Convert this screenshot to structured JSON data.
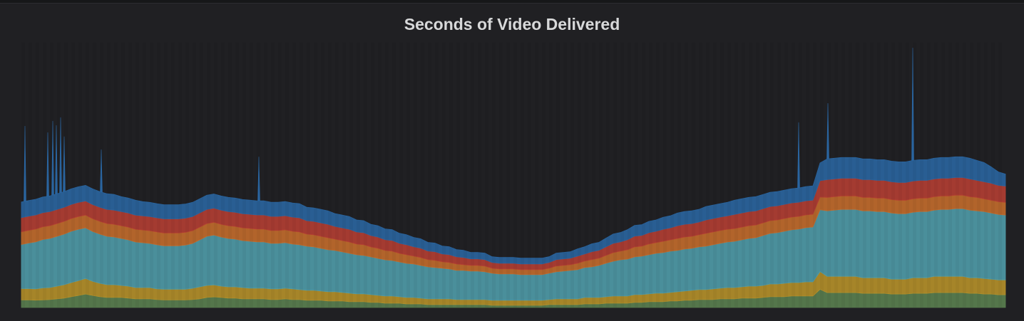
{
  "panel": {
    "title": "Seconds of Video Delivered"
  },
  "chart_data": {
    "type": "area",
    "stacked": true,
    "title": "Seconds of Video Delivered",
    "xlabel": "",
    "ylabel": "",
    "axes_visible": false,
    "grid": false,
    "legend": "none",
    "ylim": [
      0,
      100
    ],
    "x": [
      0,
      1,
      2,
      3,
      4,
      5,
      6,
      7,
      8,
      9,
      10,
      11,
      12,
      13,
      14,
      15,
      16,
      17,
      18,
      19,
      20,
      21,
      22,
      23,
      24,
      25,
      26,
      27,
      28,
      29,
      30,
      31,
      32,
      33,
      34,
      35,
      36,
      37,
      38,
      39,
      40,
      41,
      42,
      43,
      44,
      45,
      46,
      47,
      48,
      49,
      50,
      51,
      52,
      53,
      54,
      55,
      56,
      57,
      58,
      59,
      60,
      61,
      62,
      63,
      64,
      65,
      66,
      67,
      68,
      69,
      70,
      71,
      72,
      73,
      74,
      75,
      76,
      77,
      78,
      79,
      80,
      81,
      82,
      83,
      84,
      85,
      86,
      87,
      88,
      89,
      90,
      91,
      92,
      93,
      94,
      95,
      96,
      97,
      98,
      99,
      100,
      101,
      102,
      103,
      104,
      105,
      106,
      107,
      108,
      109,
      110,
      111,
      112,
      113,
      114,
      115,
      116,
      117,
      118,
      119,
      120,
      121,
      122,
      123,
      124,
      125,
      126,
      127,
      128,
      129,
      130,
      131,
      132,
      133,
      134,
      135,
      136,
      137,
      138
    ],
    "series": [
      {
        "color": "#5a7f50",
        "values": [
          4.2,
          4.2,
          4.1,
          4.2,
          4.4,
          4.8,
          5.2,
          6.0,
          6.7,
          7.5,
          6.7,
          6.0,
          5.6,
          5.6,
          5.6,
          5.2,
          4.8,
          4.8,
          4.8,
          4.4,
          4.2,
          4.2,
          4.2,
          4.2,
          4.4,
          4.8,
          5.6,
          5.9,
          5.6,
          5.2,
          5.2,
          4.8,
          4.8,
          4.8,
          4.8,
          4.4,
          4.4,
          4.8,
          4.4,
          4.4,
          4.0,
          4.0,
          4.0,
          3.6,
          3.6,
          3.6,
          3.2,
          3.2,
          3.2,
          2.8,
          2.8,
          2.4,
          2.4,
          2.4,
          2.0,
          2.0,
          2.0,
          1.6,
          1.6,
          1.6,
          1.6,
          1.6,
          1.6,
          1.6,
          1.6,
          1.6,
          1.2,
          1.2,
          1.2,
          1.2,
          1.2,
          1.2,
          1.2,
          1.2,
          1.6,
          1.6,
          1.6,
          1.6,
          1.6,
          2.0,
          2.0,
          2.0,
          2.4,
          2.4,
          2.4,
          2.4,
          2.8,
          2.8,
          3.2,
          3.2,
          3.2,
          3.6,
          3.6,
          4.0,
          4.0,
          4.4,
          4.4,
          4.4,
          4.8,
          4.8,
          4.8,
          5.2,
          5.2,
          5.2,
          5.6,
          6.0,
          6.0,
          6.0,
          6.4,
          6.4,
          6.4,
          6.4,
          10.1,
          8.3,
          8.3,
          8.3,
          8.3,
          8.3,
          7.9,
          7.9,
          7.9,
          7.9,
          7.5,
          7.5,
          7.5,
          7.9,
          7.9,
          7.9,
          8.3,
          8.3,
          8.3,
          8.3,
          8.3,
          7.9,
          7.9,
          7.5,
          7.5,
          7.1,
          7.1
        ]
      },
      {
        "color": "#b5902a",
        "values": [
          6.3,
          6.3,
          6.3,
          6.7,
          6.7,
          7.1,
          7.5,
          7.9,
          8.3,
          8.7,
          7.9,
          7.5,
          7.1,
          7.1,
          6.7,
          6.7,
          6.3,
          6.3,
          6.3,
          6.0,
          6.0,
          6.0,
          6.0,
          6.0,
          6.3,
          6.7,
          6.7,
          6.7,
          6.3,
          6.3,
          6.3,
          6.3,
          6.0,
          6.0,
          6.0,
          6.0,
          6.0,
          6.0,
          6.0,
          5.6,
          5.6,
          5.6,
          5.2,
          5.2,
          5.2,
          4.8,
          4.8,
          4.4,
          4.4,
          4.4,
          4.0,
          4.0,
          4.0,
          3.6,
          3.6,
          3.6,
          3.2,
          3.2,
          3.2,
          3.2,
          3.2,
          2.8,
          2.8,
          2.8,
          2.8,
          2.8,
          2.8,
          2.8,
          2.8,
          2.8,
          2.8,
          2.8,
          2.8,
          2.8,
          2.8,
          3.2,
          3.2,
          3.2,
          3.2,
          3.6,
          3.6,
          3.6,
          3.6,
          4.0,
          4.0,
          4.0,
          4.4,
          4.4,
          4.4,
          4.8,
          4.8,
          4.8,
          5.2,
          5.2,
          5.6,
          5.6,
          5.6,
          6.0,
          6.0,
          6.3,
          6.3,
          6.3,
          6.7,
          6.7,
          6.7,
          7.1,
          7.1,
          7.5,
          7.5,
          7.5,
          7.9,
          7.9,
          9.9,
          9.1,
          9.1,
          9.1,
          9.1,
          9.1,
          8.7,
          8.7,
          8.7,
          8.7,
          8.3,
          8.3,
          8.3,
          8.7,
          8.7,
          8.7,
          9.1,
          9.1,
          9.1,
          9.1,
          9.1,
          8.7,
          8.7,
          8.7,
          8.3,
          8.3,
          8.3
        ]
      },
      {
        "color": "#4f9ba8",
        "values": [
          24.6,
          25.4,
          26.2,
          27.0,
          27.4,
          27.8,
          28.2,
          28.6,
          28.6,
          28.2,
          27.8,
          27.4,
          27.0,
          26.6,
          26.2,
          25.8,
          25.4,
          25.0,
          24.6,
          24.6,
          24.2,
          24.2,
          24.2,
          24.6,
          25.0,
          26.2,
          27.4,
          27.8,
          27.4,
          27.0,
          26.6,
          26.2,
          26.2,
          25.8,
          25.8,
          25.4,
          25.4,
          25.4,
          25.0,
          25.0,
          24.6,
          24.2,
          23.8,
          23.4,
          23.0,
          22.6,
          22.2,
          21.8,
          21.4,
          21.0,
          20.6,
          20.2,
          19.8,
          19.4,
          19.0,
          18.7,
          18.3,
          17.9,
          17.5,
          17.1,
          16.7,
          16.3,
          16.3,
          15.9,
          15.9,
          15.5,
          15.1,
          14.7,
          14.7,
          14.7,
          14.3,
          14.3,
          14.3,
          14.3,
          14.7,
          15.1,
          15.5,
          15.9,
          16.3,
          16.7,
          17.1,
          17.9,
          18.7,
          19.4,
          20.2,
          20.6,
          21.0,
          21.4,
          21.8,
          22.2,
          22.6,
          23.0,
          23.0,
          23.4,
          23.4,
          23.8,
          24.2,
          24.6,
          25.0,
          25.4,
          25.8,
          26.2,
          26.6,
          27.0,
          27.8,
          28.2,
          28.6,
          29.0,
          29.4,
          29.8,
          30.2,
          30.6,
          34.5,
          36.5,
          36.9,
          37.3,
          37.3,
          37.3,
          37.3,
          37.3,
          36.9,
          36.9,
          36.9,
          36.5,
          36.5,
          36.5,
          36.9,
          36.9,
          36.9,
          37.3,
          37.3,
          37.7,
          37.7,
          37.7,
          37.3,
          37.3,
          36.9,
          36.5,
          36.1
        ]
      },
      {
        "color": "#c26b2c",
        "values": [
          7.1,
          7.1,
          7.1,
          7.1,
          7.1,
          7.1,
          7.1,
          7.1,
          7.1,
          7.1,
          7.1,
          7.1,
          7.1,
          7.1,
          7.1,
          7.1,
          7.1,
          7.1,
          7.1,
          7.1,
          7.1,
          7.1,
          7.1,
          7.1,
          7.1,
          7.1,
          7.1,
          7.1,
          7.1,
          7.1,
          7.1,
          7.1,
          7.1,
          7.1,
          7.1,
          7.1,
          7.1,
          7.1,
          7.1,
          7.1,
          6.7,
          6.7,
          6.7,
          6.7,
          6.3,
          6.3,
          6.3,
          6.0,
          6.0,
          5.6,
          5.6,
          5.2,
          5.2,
          4.8,
          4.8,
          4.4,
          4.4,
          4.0,
          4.0,
          3.6,
          3.6,
          3.6,
          3.2,
          3.2,
          3.2,
          3.2,
          2.8,
          2.8,
          2.8,
          2.8,
          2.8,
          2.8,
          2.8,
          2.8,
          2.8,
          3.2,
          3.2,
          3.2,
          3.6,
          3.6,
          4.0,
          4.0,
          4.4,
          4.8,
          4.8,
          5.2,
          5.6,
          5.6,
          6.0,
          6.0,
          6.3,
          6.3,
          6.7,
          6.7,
          6.7,
          6.7,
          7.1,
          7.1,
          7.1,
          7.1,
          7.1,
          7.1,
          7.1,
          7.1,
          7.1,
          7.1,
          7.1,
          7.1,
          7.1,
          7.1,
          7.1,
          7.1,
          7.1,
          7.5,
          7.5,
          7.5,
          7.5,
          7.5,
          7.5,
          7.5,
          7.5,
          7.5,
          7.5,
          7.5,
          7.5,
          7.5,
          7.5,
          7.5,
          7.5,
          7.5,
          7.5,
          7.5,
          7.5,
          7.5,
          7.5,
          7.1,
          7.1,
          7.1,
          7.1
        ]
      },
      {
        "color": "#b33e33",
        "values": [
          7.9,
          7.9,
          7.9,
          7.9,
          7.9,
          7.9,
          7.9,
          7.9,
          7.9,
          7.9,
          7.9,
          7.9,
          7.9,
          7.9,
          7.9,
          7.9,
          7.9,
          7.9,
          7.9,
          7.9,
          7.9,
          7.9,
          7.9,
          7.9,
          7.9,
          7.9,
          7.9,
          7.9,
          7.9,
          7.9,
          7.9,
          7.9,
          7.9,
          7.9,
          7.9,
          7.9,
          7.9,
          7.9,
          7.9,
          7.9,
          7.5,
          7.5,
          7.5,
          7.5,
          7.1,
          7.1,
          7.1,
          6.7,
          6.7,
          6.3,
          6.3,
          6.0,
          6.0,
          5.6,
          5.6,
          5.2,
          5.2,
          4.8,
          4.8,
          4.4,
          4.4,
          4.0,
          4.0,
          3.6,
          3.6,
          3.6,
          3.2,
          3.2,
          3.2,
          3.2,
          3.2,
          3.2,
          3.2,
          3.2,
          3.2,
          3.6,
          3.6,
          3.6,
          4.0,
          4.0,
          4.4,
          4.4,
          4.8,
          5.2,
          5.2,
          5.6,
          6.0,
          6.0,
          6.3,
          6.3,
          6.7,
          6.7,
          7.1,
          7.1,
          7.1,
          7.1,
          7.5,
          7.5,
          7.5,
          7.5,
          7.9,
          7.9,
          7.9,
          7.9,
          7.9,
          7.9,
          7.9,
          7.9,
          7.9,
          7.9,
          7.9,
          7.9,
          9.1,
          9.9,
          9.9,
          9.9,
          9.9,
          9.9,
          9.9,
          9.9,
          9.9,
          9.9,
          9.9,
          9.9,
          9.9,
          9.9,
          9.9,
          9.9,
          9.9,
          9.9,
          9.9,
          9.9,
          9.9,
          9.9,
          9.5,
          9.5,
          9.5,
          9.1,
          9.1
        ]
      },
      {
        "color": "#2a65a0",
        "values": [
          8.7,
          8.7,
          8.7,
          8.7,
          8.7,
          8.7,
          8.7,
          8.7,
          8.7,
          8.7,
          8.7,
          8.7,
          8.7,
          8.7,
          8.3,
          8.3,
          8.3,
          7.9,
          7.9,
          7.9,
          7.9,
          7.9,
          7.9,
          7.9,
          7.9,
          7.9,
          7.9,
          7.9,
          7.9,
          7.9,
          7.9,
          7.9,
          7.9,
          7.9,
          7.9,
          7.9,
          7.9,
          7.9,
          7.9,
          7.9,
          7.5,
          7.5,
          7.5,
          7.5,
          7.1,
          7.1,
          7.1,
          6.7,
          6.7,
          6.3,
          6.3,
          6.0,
          6.0,
          5.6,
          5.6,
          5.2,
          5.2,
          4.8,
          4.8,
          4.4,
          4.4,
          4.0,
          4.0,
          3.6,
          3.6,
          3.6,
          3.2,
          3.2,
          3.2,
          3.2,
          3.2,
          3.2,
          3.2,
          3.2,
          3.2,
          3.6,
          3.6,
          3.6,
          4.0,
          4.0,
          4.4,
          4.4,
          4.8,
          5.2,
          5.2,
          5.6,
          6.0,
          6.0,
          6.3,
          6.3,
          6.7,
          6.7,
          7.1,
          7.1,
          7.1,
          7.1,
          7.5,
          7.5,
          7.5,
          7.5,
          7.9,
          7.9,
          7.9,
          7.9,
          7.9,
          7.9,
          7.9,
          7.9,
          7.9,
          7.9,
          7.9,
          7.9,
          9.9,
          11.5,
          11.5,
          11.5,
          11.5,
          11.5,
          11.5,
          11.5,
          11.5,
          11.5,
          11.5,
          11.5,
          11.5,
          11.5,
          11.5,
          11.5,
          11.5,
          11.5,
          11.5,
          11.5,
          11.5,
          11.5,
          11.1,
          10.7,
          9.1,
          7.5,
          6.7
        ]
      }
    ],
    "spikes": [
      {
        "x": 0.5,
        "total": 101.2
      },
      {
        "x": 3.7,
        "total": 97.6
      },
      {
        "x": 4.4,
        "total": 104.0
      },
      {
        "x": 4.9,
        "total": 101.6
      },
      {
        "x": 5.5,
        "total": 106.0
      },
      {
        "x": 6.0,
        "total": 95.3
      },
      {
        "x": 11.2,
        "total": 88.1
      },
      {
        "x": 33.3,
        "total": 84.1
      },
      {
        "x": 109.0,
        "total": 103.2
      },
      {
        "x": 113.1,
        "total": 113.9
      },
      {
        "x": 125.0,
        "total": 144.8
      }
    ]
  }
}
